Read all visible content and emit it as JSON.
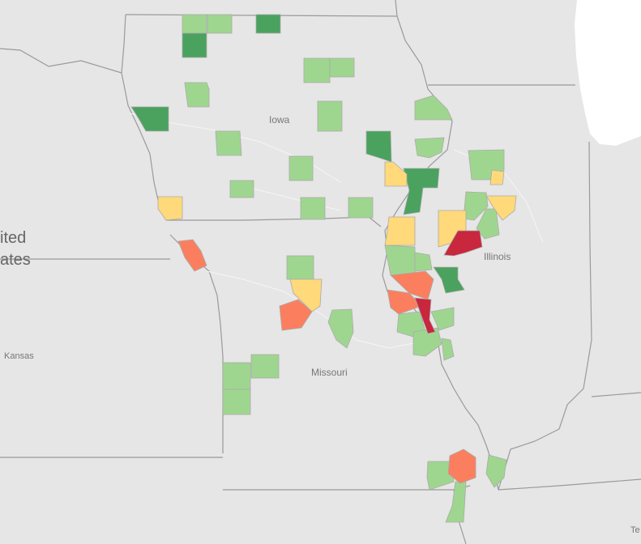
{
  "map": {
    "labels": {
      "iowa": "Iowa",
      "illinois": "Illinois",
      "missouri": "Missouri",
      "kansas": "Kansas",
      "us_line1": "ited",
      "us_line2": "ates",
      "tennessee_partial": "Te"
    },
    "colors": {
      "background": "#e6e6e6",
      "lake": "#ffffff",
      "border": "#9a9a9a",
      "light_green": "#9fd68f",
      "dark_green": "#4aa25e",
      "yellow": "#ffd97a",
      "salmon": "#fb7f5e",
      "red": "#c8273d"
    }
  }
}
